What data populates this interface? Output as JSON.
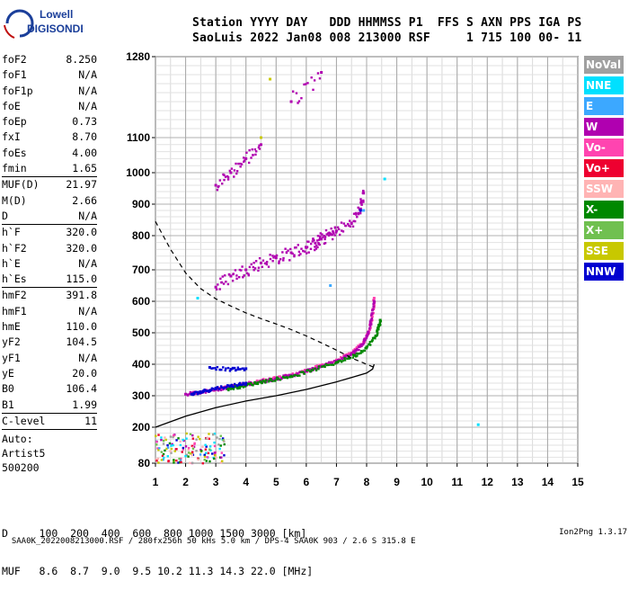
{
  "logo": {
    "line1": "Lowell",
    "line2": "DIGISONDE"
  },
  "header": {
    "line1": "Station YYYY DAY   DDD HHMMSS P1  FFS S AXN PPS IGA PS",
    "line2": "SaoLuis 2022 Jan08 008 213000 RSF     1 715 100 00- 11"
  },
  "params": [
    {
      "name": "foF2",
      "value": "8.250"
    },
    {
      "name": "foF1",
      "value": "N/A"
    },
    {
      "name": "foF1p",
      "value": "N/A"
    },
    {
      "name": "foE",
      "value": "N/A"
    },
    {
      "name": "foEp",
      "value": "0.73"
    },
    {
      "name": "fxI",
      "value": "8.70"
    },
    {
      "name": "foEs",
      "value": "4.00"
    },
    {
      "name": "fmin",
      "value": "1.65"
    },
    {
      "sep": true
    },
    {
      "name": "MUF(D)",
      "value": "21.97"
    },
    {
      "name": "M(D)",
      "value": "2.66"
    },
    {
      "name": "D",
      "value": "N/A"
    },
    {
      "sep": true
    },
    {
      "name": "h`F",
      "value": "320.0"
    },
    {
      "name": "h`F2",
      "value": "320.0"
    },
    {
      "name": "h`E",
      "value": "N/A"
    },
    {
      "name": "h`Es",
      "value": "115.0"
    },
    {
      "sep": true
    },
    {
      "name": "hmF2",
      "value": "391.8"
    },
    {
      "name": "hmF1",
      "value": "N/A"
    },
    {
      "name": "hmE",
      "value": "110.0"
    },
    {
      "name": "yF2",
      "value": "104.5"
    },
    {
      "name": "yF1",
      "value": "N/A"
    },
    {
      "name": "yE",
      "value": "20.0"
    },
    {
      "name": "B0",
      "value": "106.4"
    },
    {
      "name": "B1",
      "value": "1.99"
    },
    {
      "sep": true
    },
    {
      "name": "C-level",
      "value": "11"
    },
    {
      "sep": true
    }
  ],
  "auto": {
    "line1": "Auto:",
    "line2": "Artist5",
    "line3": "500200"
  },
  "legend": [
    {
      "label": "NoVal",
      "color": "#a0a0a0"
    },
    {
      "label": "NNE",
      "color": "#00e0ff"
    },
    {
      "label": "E",
      "color": "#3ca8ff"
    },
    {
      "label": "W",
      "color": "#b000b0"
    },
    {
      "label": "Vo-",
      "color": "#ff44b0"
    },
    {
      "label": "Vo+",
      "color": "#ee0030"
    },
    {
      "label": "SSW",
      "color": "#ffb4b4"
    },
    {
      "label": "X-",
      "color": "#008800"
    },
    {
      "label": "X+",
      "color": "#70c050"
    },
    {
      "label": "SSE",
      "color": "#c8c800"
    },
    {
      "label": "NNW",
      "color": "#0000d0"
    }
  ],
  "dmuf": {
    "line1": "D     100  200  400  600  800 1000 1500 3000 [km]",
    "line2": "MUF   8.6  8.7  9.0  9.5 10.2 11.3 14.3 22.0 [MHz]"
  },
  "footer": {
    "left": "SAA0K_2022008213000.RSF / 280fx256h 50 kHs 5.0 km / DPS-4 SAA0K 903 / 2.6 S 315.8 E",
    "right": "Ion2Png 1.3.17"
  },
  "chart_data": {
    "type": "scatter",
    "xlim": [
      1,
      15
    ],
    "ylim": [
      80,
      1280
    ],
    "x_ticks": [
      "1",
      "2",
      "3",
      "4",
      "5",
      "6",
      "7",
      "8",
      "9",
      "10",
      "11",
      "12",
      "13",
      "14",
      "15"
    ],
    "y_ticks": [
      "80",
      "200",
      "300",
      "400",
      "500",
      "600",
      "700",
      "800",
      "900",
      "1000",
      "1100",
      "1280"
    ],
    "grid": true,
    "series": [
      {
        "name": "Vo-",
        "color": "#ff44b0",
        "points": [
          [
            2.9,
            318
          ],
          [
            3.5,
            330
          ],
          [
            4.0,
            338
          ],
          [
            4.5,
            348
          ],
          [
            5.0,
            356
          ],
          [
            5.5,
            366
          ],
          [
            6.0,
            380
          ],
          [
            6.5,
            396
          ],
          [
            7.0,
            412
          ],
          [
            7.5,
            436
          ],
          [
            7.9,
            470
          ],
          [
            8.1,
            510
          ],
          [
            8.2,
            560
          ],
          [
            8.25,
            610
          ]
        ]
      },
      {
        "name": "W",
        "color": "#b000b0",
        "points": [
          [
            2.0,
            305
          ],
          [
            2.5,
            312
          ],
          [
            3.0,
            320
          ],
          [
            3.5,
            328
          ],
          [
            4.0,
            336
          ],
          [
            4.5,
            346
          ],
          [
            5.0,
            355
          ],
          [
            5.5,
            365
          ],
          [
            6.0,
            378
          ],
          [
            6.5,
            394
          ],
          [
            7.0,
            410
          ],
          [
            7.5,
            432
          ],
          [
            7.8,
            458
          ],
          [
            8.0,
            490
          ],
          [
            8.15,
            540
          ],
          [
            8.25,
            600
          ],
          [
            3.0,
            645
          ],
          [
            3.5,
            680
          ],
          [
            4.0,
            700
          ],
          [
            4.5,
            720
          ],
          [
            5.0,
            735
          ],
          [
            5.5,
            750
          ],
          [
            6.0,
            765
          ],
          [
            6.3,
            778
          ],
          [
            6.5,
            790
          ],
          [
            6.8,
            805
          ],
          [
            7.0,
            815
          ],
          [
            7.5,
            840
          ],
          [
            7.8,
            885
          ],
          [
            7.9,
            935
          ],
          [
            3.0,
            960
          ],
          [
            3.5,
            1000
          ],
          [
            4.0,
            1040
          ],
          [
            4.5,
            1080
          ],
          [
            5.5,
            1180
          ],
          [
            6.5,
            1245
          ]
        ]
      },
      {
        "name": "X-",
        "color": "#008800",
        "points": [
          [
            3.4,
            322
          ],
          [
            3.8,
            330
          ],
          [
            4.3,
            340
          ],
          [
            4.8,
            350
          ],
          [
            5.5,
            362
          ],
          [
            6.2,
            382
          ],
          [
            7.0,
            406
          ],
          [
            7.6,
            428
          ],
          [
            8.0,
            454
          ],
          [
            8.3,
            490
          ],
          [
            8.4,
            520
          ],
          [
            8.45,
            540
          ]
        ]
      },
      {
        "name": "NNW",
        "color": "#0000d0",
        "points": [
          [
            2.2,
            305
          ],
          [
            2.6,
            315
          ],
          [
            3.0,
            324
          ],
          [
            3.5,
            332
          ],
          [
            4.0,
            340
          ],
          [
            2.8,
            390
          ],
          [
            3.5,
            384
          ],
          [
            4.0,
            386
          ],
          [
            7.8,
            880
          ]
        ]
      },
      {
        "name": "E",
        "color": "#3ca8ff",
        "points": [
          [
            6.8,
            650
          ],
          [
            7.9,
            880
          ]
        ]
      },
      {
        "name": "NNE",
        "color": "#00e0ff",
        "points": [
          [
            2.4,
            610
          ],
          [
            8.6,
            980
          ],
          [
            11.7,
            208
          ]
        ]
      },
      {
        "name": "SSE",
        "color": "#c8c800",
        "points": [
          [
            4.8,
            1230
          ],
          [
            4.5,
            1100
          ]
        ]
      }
    ],
    "profile": {
      "name": "profile",
      "color": "#000000",
      "points": [
        [
          1.0,
          200
        ],
        [
          2.0,
          235
        ],
        [
          3.0,
          262
        ],
        [
          4.0,
          283
        ],
        [
          5.0,
          300
        ],
        [
          6.0,
          320
        ],
        [
          7.0,
          344
        ],
        [
          7.5,
          358
        ],
        [
          8.0,
          372
        ],
        [
          8.2,
          385
        ],
        [
          8.25,
          400
        ]
      ]
    },
    "muf_curve": {
      "name": "MUF curve",
      "color": "#000000",
      "style": "dashed",
      "points": [
        [
          1.0,
          845
        ],
        [
          1.5,
          760
        ],
        [
          2.0,
          690
        ],
        [
          2.5,
          640
        ],
        [
          3.0,
          608
        ],
        [
          3.5,
          585
        ],
        [
          4.0,
          563
        ],
        [
          4.5,
          545
        ],
        [
          5.0,
          528
        ],
        [
          5.5,
          510
        ],
        [
          6.0,
          490
        ],
        [
          6.5,
          468
        ],
        [
          7.0,
          445
        ],
        [
          7.5,
          420
        ],
        [
          8.0,
          400
        ],
        [
          8.25,
          390
        ]
      ]
    },
    "es_layer": {
      "x_range": [
        1.0,
        3.3
      ],
      "h_range": [
        80,
        180
      ]
    }
  }
}
